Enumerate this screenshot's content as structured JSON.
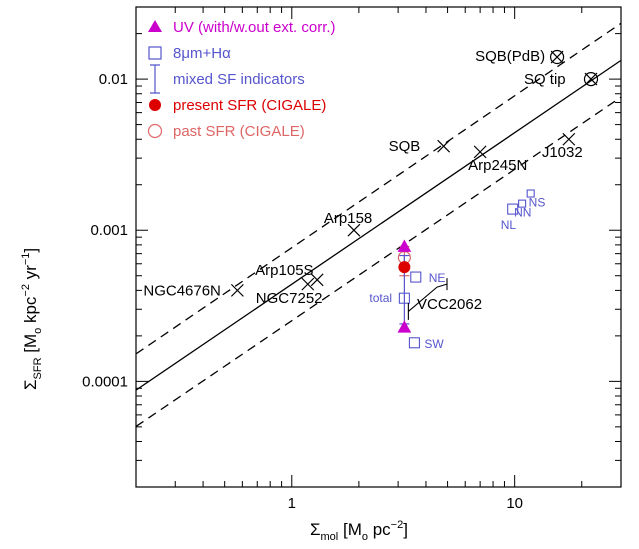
{
  "chart_data": {
    "type": "scatter",
    "xscale": "log",
    "yscale": "log",
    "xlim": [
      0.2,
      30
    ],
    "ylim": [
      2e-05,
      0.03
    ],
    "x_ticks": [
      {
        "value": 1,
        "label": "1"
      },
      {
        "value": 10,
        "label": "10"
      }
    ],
    "y_ticks": [
      {
        "value": 0.0001,
        "label": "0.0001"
      },
      {
        "value": 0.001,
        "label": "0.001"
      },
      {
        "value": 0.01,
        "label": "0.01"
      }
    ],
    "xlabel": {
      "main": "Σ",
      "sub": "mol",
      "rest": " [M",
      "sub2": "o",
      "rest2": " pc",
      "sup": "−2",
      "rest3": "]"
    },
    "ylabel": {
      "main": "Σ",
      "sub": "SFR",
      "rest": " [M",
      "sub2": "o",
      "rest2": " kpc",
      "sup": "−2",
      "rest3": " yr",
      "sup2": "−1",
      "rest4": "]"
    },
    "relations": [
      {
        "style": "solid",
        "x": [
          0.2,
          30
        ],
        "y": [
          8.75e-05,
          0.0133
        ]
      },
      {
        "style": "dashed",
        "x": [
          0.2,
          30
        ],
        "y": [
          0.000152,
          0.0234
        ]
      },
      {
        "style": "dashed",
        "x": [
          0.2,
          30
        ],
        "y": [
          5.03e-05,
          0.0076
        ]
      }
    ],
    "legend": {
      "position": "top-left",
      "entries": [
        {
          "marker": "filled-triangle",
          "color": "#cc00cc",
          "label": "UV (with/w.out ext. corr.)"
        },
        {
          "marker": "open-square",
          "color": "#5555cc",
          "label": "8μm+Hα"
        },
        {
          "marker": "errorbar",
          "color": "#5555cc",
          "label": "mixed SF indicators"
        },
        {
          "marker": "filled-circle",
          "color": "#dd0000",
          "label": "present SFR (CIGALE)"
        },
        {
          "marker": "open-circle",
          "color": "#dd6666",
          "label": "past SFR (CIGALE)"
        }
      ]
    },
    "cross_points": [
      {
        "label": "SQB(PdB)",
        "x": 15.5,
        "y": 0.014,
        "circled": true
      },
      {
        "label": "SQ tip",
        "x": 22.0,
        "y": 0.01,
        "circled": true
      },
      {
        "label": "SQB",
        "x": 4.8,
        "y": 0.0036,
        "circled": false
      },
      {
        "label": "Arp245N",
        "x": 7.0,
        "y": 0.0033,
        "circled": false
      },
      {
        "label": "J1032",
        "x": 17.5,
        "y": 0.004,
        "circled": false
      },
      {
        "label": "Arp158",
        "x": 1.9,
        "y": 0.001,
        "circled": false
      },
      {
        "label": "Arp105S",
        "x": 1.3,
        "y": 0.00047,
        "circled": false
      },
      {
        "label": "NGC7252",
        "x": 1.18,
        "y": 0.00044,
        "circled": false
      },
      {
        "label": "NGC4676N",
        "x": 0.57,
        "y": 0.0004,
        "circled": false
      }
    ],
    "square_points": [
      {
        "label": "NL",
        "x": 9.8,
        "y": 0.00138
      },
      {
        "label": "NN",
        "x": 10.8,
        "y": 0.0015
      },
      {
        "label": "NS",
        "x": 11.8,
        "y": 0.00175
      },
      {
        "label": "NE",
        "x": 3.6,
        "y": 0.00049
      },
      {
        "label": "SW",
        "x": 3.55,
        "y": 0.00018
      }
    ],
    "vcc2062": {
      "label": "VCC2062",
      "total_label": "total",
      "x": 3.2,
      "uv_triangles": [
        0.00078,
        0.000228
      ],
      "square_total": 0.000355,
      "errorbar_mixed": [
        0.00068,
        0.00024
      ],
      "present_sfr": 0.00057,
      "past_sfr": 0.00066,
      "past_sfr_err": [
        0.00078,
        0.0005
      ]
    }
  }
}
